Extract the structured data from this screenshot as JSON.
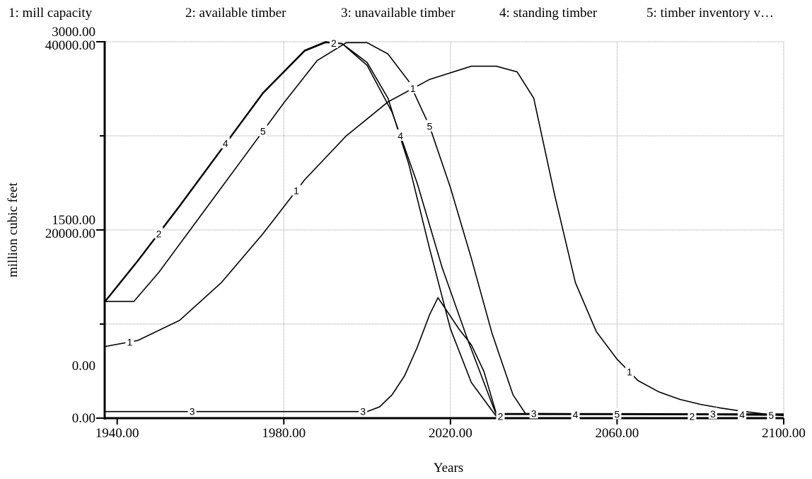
{
  "chart_data": {
    "type": "line",
    "title": "",
    "xlabel": "Years",
    "ylabel": "million cubic feet",
    "legend_position": "top",
    "grid": true,
    "xlim": [
      1937,
      2100
    ],
    "x_ticks": [
      1940,
      1980,
      2020,
      2060,
      2100
    ],
    "x_tick_labels": [
      "1940.00",
      "1980.00",
      "2020.00",
      "2060.00",
      "2100.00"
    ],
    "y_axes": [
      {
        "id": "left_upper",
        "tick_labels": [
          "0.00",
          "1500.00",
          "3000.00"
        ],
        "ylim": [
          0,
          3000
        ]
      },
      {
        "id": "left_lower",
        "tick_labels": [
          "0.00",
          "20000.00",
          "40000.00"
        ],
        "ylim": [
          0,
          40000
        ]
      }
    ],
    "legend": [
      {
        "id": "1",
        "label": "1: mill capacity"
      },
      {
        "id": "2",
        "label": "2: available timber"
      },
      {
        "id": "3",
        "label": "3: unavailable timber"
      },
      {
        "id": "4",
        "label": "4: standing timber"
      },
      {
        "id": "5",
        "label": "5: timber inventory v…"
      }
    ],
    "series": [
      {
        "marker": "1",
        "name": "1: mill capacity",
        "axis": "left_upper",
        "x": [
          1937,
          1945,
          1955,
          1965,
          1975,
          1985,
          1995,
          2005,
          2015,
          2025,
          2031,
          2036,
          2040,
          2045,
          2050,
          2055,
          2060,
          2065,
          2070,
          2075,
          2080,
          2085,
          2090,
          2095,
          2100
        ],
        "y": [
          570,
          620,
          780,
          1080,
          1470,
          1900,
          2250,
          2520,
          2700,
          2805,
          2805,
          2760,
          2550,
          1780,
          1080,
          690,
          470,
          300,
          210,
          150,
          110,
          80,
          55,
          35,
          20
        ]
      },
      {
        "marker": "2",
        "name": "2: available timber",
        "axis": "left_lower",
        "x": [
          1937,
          1945,
          1955,
          1965,
          1975,
          1985,
          1990,
          1994,
          2000,
          2005,
          2010,
          2015,
          2020,
          2025,
          2030,
          2031
        ],
        "y": [
          12300,
          16700,
          22500,
          28500,
          34500,
          39000,
          39900,
          39800,
          37800,
          34000,
          27000,
          18000,
          9500,
          3800,
          800,
          200
        ]
      },
      {
        "marker": "3",
        "name": "3: unavailable timber",
        "axis": "left_lower",
        "x": [
          1937,
          1990,
          2000,
          2003,
          2006,
          2009,
          2012,
          2015,
          2017,
          2019,
          2022,
          2025,
          2028,
          2030,
          2031,
          2100
        ],
        "y": [
          700,
          700,
          700,
          1200,
          2500,
          4500,
          7500,
          11000,
          12800,
          11500,
          9500,
          7800,
          5000,
          2000,
          500,
          450
        ]
      },
      {
        "marker": "4",
        "name": "4: standing timber",
        "axis": "left_lower",
        "x": [
          1937,
          1945,
          1955,
          1965,
          1975,
          1985,
          1990,
          1994,
          2000,
          2006,
          2012,
          2018,
          2024,
          2030,
          2031,
          2100
        ],
        "y": [
          12400,
          16800,
          22600,
          28600,
          34600,
          39100,
          40000,
          39800,
          37500,
          32500,
          25000,
          16000,
          8500,
          1500,
          400,
          350
        ]
      },
      {
        "marker": "5",
        "name": "5: timber inventory v…",
        "axis": "left_lower",
        "x": [
          1937,
          1944,
          1950,
          1960,
          1970,
          1980,
          1988,
          1995,
          2000,
          2005,
          2010,
          2015,
          2020,
          2025,
          2030,
          2035,
          2038,
          2100
        ],
        "y": [
          12400,
          12400,
          15500,
          21500,
          27500,
          33500,
          38000,
          39900,
          39900,
          38700,
          35800,
          31000,
          24500,
          17000,
          9000,
          2500,
          500,
          300
        ]
      }
    ],
    "series_marker_positions": [
      {
        "marker": "1",
        "x": [
          1943,
          1983,
          2011,
          2063
        ]
      },
      {
        "marker": "2",
        "x": [
          1950,
          1992,
          2032,
          2078
        ]
      },
      {
        "marker": "3",
        "x": [
          1958,
          1999,
          2040,
          2083
        ]
      },
      {
        "marker": "4",
        "x": [
          1966,
          2008,
          2050,
          2090
        ]
      },
      {
        "marker": "5",
        "x": [
          1975,
          2015,
          2060,
          2097
        ]
      }
    ]
  }
}
